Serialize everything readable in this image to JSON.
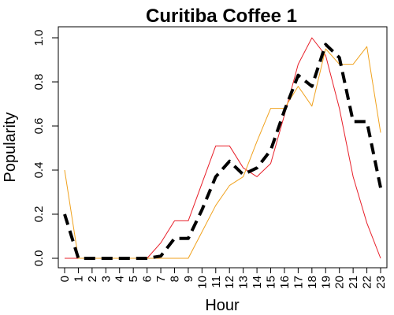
{
  "chart_data": {
    "type": "line",
    "title": "Curitiba Coffee 1",
    "xlabel": "Hour",
    "ylabel": "Popularity",
    "xlim": [
      0,
      23
    ],
    "ylim": [
      0,
      1
    ],
    "x_ticks": [
      "0",
      "1",
      "2",
      "3",
      "4",
      "5",
      "6",
      "7",
      "8",
      "9",
      "10",
      "11",
      "12",
      "13",
      "14",
      "15",
      "16",
      "17",
      "18",
      "19",
      "20",
      "21",
      "22",
      "23"
    ],
    "y_ticks": [
      "0.0",
      "0.2",
      "0.4",
      "0.6",
      "0.8",
      "1.0"
    ],
    "grid": false,
    "legend": "none",
    "x": [
      0,
      1,
      2,
      3,
      4,
      5,
      6,
      7,
      8,
      9,
      10,
      11,
      12,
      13,
      14,
      15,
      16,
      17,
      18,
      19,
      20,
      21,
      22,
      23
    ],
    "series": [
      {
        "color": "#e8202a",
        "style": "solid",
        "values": [
          0.0,
          0.0,
          0.0,
          0.0,
          0.0,
          0.0,
          0.0,
          0.07,
          0.17,
          0.17,
          0.34,
          0.51,
          0.51,
          0.41,
          0.37,
          0.43,
          0.65,
          0.88,
          1.0,
          0.92,
          0.68,
          0.37,
          0.16,
          0.0
        ]
      },
      {
        "color": "#f0a21e",
        "style": "solid",
        "values": [
          0.4,
          0.0,
          0.0,
          0.0,
          0.0,
          0.0,
          0.0,
          0.0,
          0.0,
          0.0,
          0.12,
          0.24,
          0.33,
          0.37,
          0.53,
          0.68,
          0.68,
          0.78,
          0.69,
          0.95,
          0.88,
          0.88,
          0.96,
          0.57
        ]
      },
      {
        "color": "#000000",
        "style": "dashed",
        "values": [
          0.2,
          0.0,
          0.0,
          0.0,
          0.0,
          0.0,
          0.0,
          0.01,
          0.09,
          0.09,
          0.22,
          0.37,
          0.44,
          0.38,
          0.41,
          0.49,
          0.67,
          0.83,
          0.78,
          0.97,
          0.91,
          0.62,
          0.62,
          0.32
        ]
      }
    ]
  }
}
